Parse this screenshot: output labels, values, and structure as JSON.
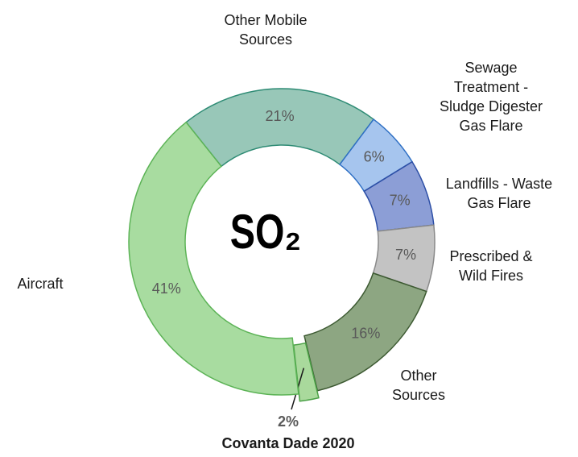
{
  "chart_data": {
    "type": "donut",
    "center_label": "SO₂",
    "categories": [
      "Other Mobile Sources",
      "Sewage Treatment - Sludge Digester Gas Flare",
      "Landfills - Waste Gas Flare",
      "Prescribed & Wild Fires",
      "Other Sources",
      "Covanta Dade 2020",
      "Aircraft"
    ],
    "values": [
      21,
      6,
      7,
      7,
      16,
      2,
      41
    ],
    "value_labels": [
      "21%",
      "6%",
      "7%",
      "7%",
      "16%",
      "2%",
      "41%"
    ],
    "colors": [
      "#98c7b8",
      "#a6c5ee",
      "#8c9ed6",
      "#c3c3c3",
      "#8da682",
      "#a9d99c",
      "#a8dca0"
    ],
    "edge_colors": [
      "#2e8b74",
      "#2e6fc4",
      "#2d4fa6",
      "#8a8a8a",
      "#3d5a32",
      "#4aa046",
      "#5cb356"
    ],
    "exploded": "Covanta Dade 2020"
  }
}
